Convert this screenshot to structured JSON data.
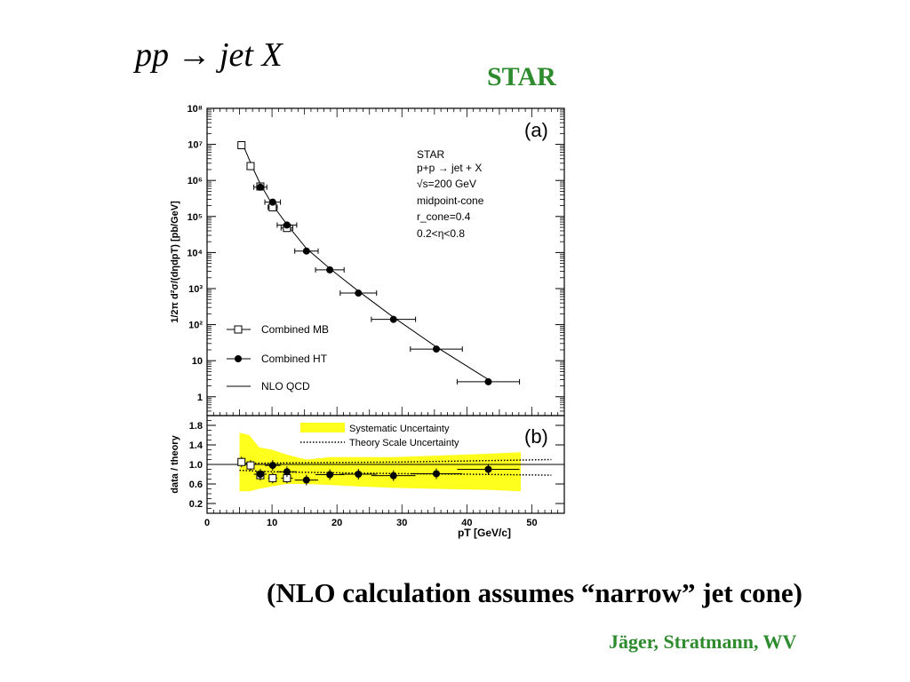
{
  "slide": {
    "title": "pp → jet X",
    "experiment": "STAR",
    "caption": "(NLO calculation assumes “narrow” jet cone)",
    "credits": "Jäger, Stratmann, WV"
  },
  "colors": {
    "text_green": "#2e8b2e",
    "systematic_band": "#ffff1e",
    "axis": "#000000"
  },
  "chart_data": [
    {
      "type": "scatter",
      "panel_label": "(a)",
      "ylabel": "1/2π d²σ/(dηdpT) [pb/GeV]",
      "yscale": "log",
      "xlim": [
        0,
        55
      ],
      "ylim": [
        0.3,
        100000000
      ],
      "yticks": [
        {
          "v": 1,
          "label": "1"
        },
        {
          "v": 10,
          "label": "10"
        },
        {
          "v": 100,
          "label": "10²"
        },
        {
          "v": 1000,
          "label": "10³"
        },
        {
          "v": 10000,
          "label": "10⁴"
        },
        {
          "v": 100000,
          "label": "10⁵"
        },
        {
          "v": 1000000,
          "label": "10⁶"
        },
        {
          "v": 10000000,
          "label": "10⁷"
        },
        {
          "v": 100000000,
          "label": "10⁸"
        }
      ],
      "info_lines": [
        "STAR",
        "p+p → jet + X",
        "√s=200 GeV",
        "midpoint-cone",
        "r_cone=0.4",
        "0.2<η<0.8"
      ],
      "legend": {
        "placement": "bottom-left",
        "entries": [
          "Combined MB",
          "Combined HT",
          "NLO QCD"
        ]
      },
      "series": [
        {
          "name": "Combined MB",
          "marker": "open-square",
          "points": [
            {
              "x": 5.3,
              "y": 9500000,
              "xerr": 0.3
            },
            {
              "x": 6.7,
              "y": 2500000,
              "xerr": 0.4
            },
            {
              "x": 8.2,
              "y": 680000,
              "xerr": 0.5
            },
            {
              "x": 10.1,
              "y": 180000,
              "xerr": 0.7
            },
            {
              "x": 12.3,
              "y": 48000,
              "xerr": 0.9
            }
          ]
        },
        {
          "name": "Combined HT",
          "marker": "filled-circle",
          "points": [
            {
              "x": 8.2,
              "y": 650000,
              "xerr": 1.0
            },
            {
              "x": 10.1,
              "y": 250000,
              "xerr": 1.2
            },
            {
              "x": 12.3,
              "y": 58000,
              "xerr": 1.5
            },
            {
              "x": 15.3,
              "y": 11000,
              "xerr": 1.8
            },
            {
              "x": 18.9,
              "y": 3300,
              "xerr": 2.2
            },
            {
              "x": 23.3,
              "y": 750,
              "xerr": 2.8
            },
            {
              "x": 28.7,
              "y": 140,
              "xerr": 3.4
            },
            {
              "x": 35.3,
              "y": 21,
              "xerr": 4.0
            },
            {
              "x": 43.3,
              "y": 2.6,
              "xerr": 4.8
            }
          ]
        },
        {
          "name": "NLO QCD",
          "line": "solid",
          "x": [
            5.5,
            7,
            8.2,
            10,
            12.3,
            15.3,
            18.9,
            23.3,
            28.7,
            35.3,
            43.3
          ],
          "y": [
            10000000,
            2300000,
            800000,
            220000,
            60000,
            13000,
            3600,
            850,
            160,
            24,
            3.0
          ]
        }
      ]
    },
    {
      "type": "scatter",
      "panel_label": "(b)",
      "xlabel": "pT [GeV/c]",
      "ylabel": "data / theory",
      "xlim": [
        0,
        55
      ],
      "ylim": [
        0,
        2.0
      ],
      "xticks": [
        0,
        10,
        20,
        30,
        40,
        50
      ],
      "yticks": [
        0.2,
        0.6,
        1.0,
        1.4,
        1.8
      ],
      "reference_line": 1.0,
      "legend": {
        "placement": "top",
        "entries": [
          "Systematic Uncertainty",
          "Theory Scale Uncertainty"
        ]
      },
      "systematic_band": {
        "x": [
          5,
          6.5,
          8,
          10,
          12.3,
          15.3,
          18.9,
          23.3,
          28.7,
          35.3,
          43.3,
          48.3
        ],
        "upper": [
          1.65,
          1.6,
          1.35,
          1.3,
          1.2,
          1.1,
          1.15,
          1.15,
          1.15,
          1.18,
          1.22,
          1.25
        ],
        "lower": [
          0.45,
          0.45,
          0.5,
          0.55,
          0.6,
          0.6,
          0.58,
          0.55,
          0.52,
          0.5,
          0.48,
          0.45
        ]
      },
      "theory_scale_band": {
        "x": [
          5,
          10,
          20,
          30,
          40,
          53
        ],
        "upper": [
          1.02,
          1.03,
          1.04,
          1.05,
          1.07,
          1.1
        ],
        "lower": [
          0.88,
          0.85,
          0.83,
          0.81,
          0.8,
          0.78
        ]
      },
      "series": [
        {
          "name": "Combined MB",
          "marker": "open-square",
          "points": [
            {
              "x": 5.3,
              "y": 1.05,
              "xerr": 0.3
            },
            {
              "x": 6.7,
              "y": 0.98,
              "xerr": 0.4
            },
            {
              "x": 8.2,
              "y": 0.78,
              "xerr": 0.5
            },
            {
              "x": 10.1,
              "y": 0.72,
              "xerr": 0.7
            },
            {
              "x": 12.3,
              "y": 0.72,
              "xerr": 0.9
            }
          ]
        },
        {
          "name": "Combined HT",
          "marker": "filled-circle",
          "points": [
            {
              "x": 8.2,
              "y": 0.8,
              "xerr": 1.0
            },
            {
              "x": 10.1,
              "y": 0.98,
              "xerr": 1.2
            },
            {
              "x": 12.3,
              "y": 0.85,
              "xerr": 1.5
            },
            {
              "x": 15.3,
              "y": 0.68,
              "xerr": 1.8
            },
            {
              "x": 18.9,
              "y": 0.79,
              "xerr": 2.2
            },
            {
              "x": 23.3,
              "y": 0.8,
              "xerr": 2.8
            },
            {
              "x": 28.7,
              "y": 0.77,
              "xerr": 3.4
            },
            {
              "x": 35.3,
              "y": 0.81,
              "xerr": 4.0
            },
            {
              "x": 43.3,
              "y": 0.9,
              "xerr": 4.8
            }
          ]
        }
      ]
    }
  ]
}
